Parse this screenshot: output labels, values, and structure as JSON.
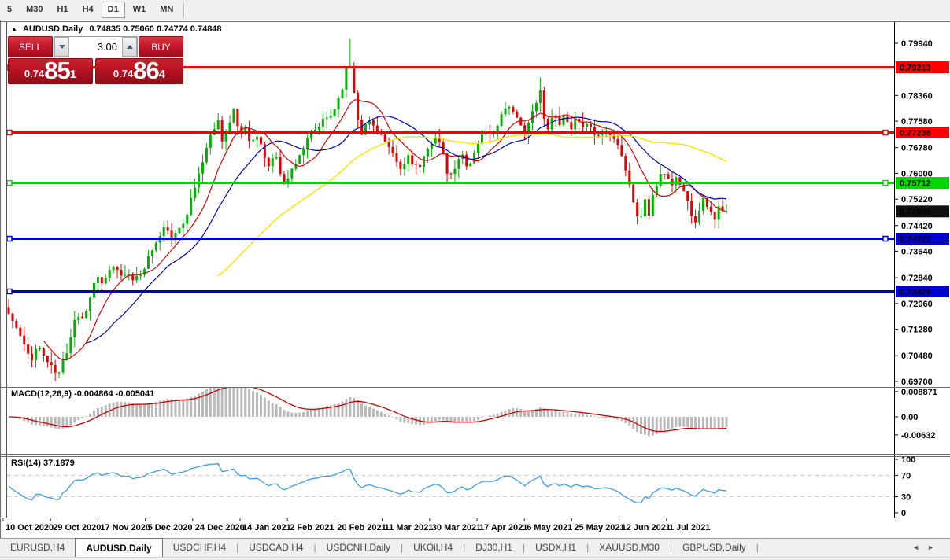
{
  "toolbar": {
    "timeframes": [
      {
        "label": "5",
        "active": false
      },
      {
        "label": "M30",
        "active": false
      },
      {
        "label": "H1",
        "active": false
      },
      {
        "label": "H4",
        "active": false
      },
      {
        "label": "D1",
        "active": true
      },
      {
        "label": "W1",
        "active": false
      },
      {
        "label": "MN",
        "active": false
      }
    ]
  },
  "chart_header": {
    "collapse_icon": "▲",
    "symbol": "AUDUSD,Daily",
    "ohlc": "0.74835 0.75060 0.74774 0.74848"
  },
  "trade_panel": {
    "sell_label": "SELL",
    "buy_label": "BUY",
    "volume": "3.00",
    "sell_price": {
      "prefix": "0.74",
      "big": "85",
      "sup": "1"
    },
    "buy_price": {
      "prefix": "0.74",
      "big": "86",
      "sup": "4"
    }
  },
  "price_axis": {
    "ticks": [
      "0.79940",
      "0.78360",
      "0.77580",
      "0.76780",
      "0.76000",
      "0.75220",
      "0.74420",
      "0.73640",
      "0.72840",
      "0.72060",
      "0.71280",
      "0.70480",
      "0.69700"
    ]
  },
  "macd_panel": {
    "label": "MACD(12,26,9)",
    "values": "-0.004864 -0.005041",
    "ticks": [
      {
        "label": "0.008871",
        "v": 0.008871
      },
      {
        "label": "0.00",
        "v": 0
      },
      {
        "label": "-0.00632",
        "v": -0.00632
      }
    ]
  },
  "rsi_panel": {
    "label": "RSI(14)",
    "value": "37.1879",
    "ticks": [
      {
        "label": "100",
        "v": 100
      },
      {
        "label": "70",
        "v": 70
      },
      {
        "label": "30",
        "v": 30
      },
      {
        "label": "0",
        "v": 0
      }
    ],
    "dashed_levels": [
      70,
      30
    ]
  },
  "date_axis": {
    "labels": [
      "10 Oct 2020",
      "29 Oct 2020",
      "17 Nov 2020",
      "5 Dec 2020",
      "24 Dec 2020",
      "14 Jan 2021",
      "2 Feb 2021",
      "20 Feb 2021",
      "11 Mar 2021",
      "30 Mar 2021",
      "17 Apr 2021",
      "6 May 2021",
      "25 May 2021",
      "12 Jun 2021",
      "1 Jul 2021"
    ]
  },
  "tabs": {
    "items": [
      {
        "label": "EURUSD,H4",
        "active": false
      },
      {
        "label": "AUDUSD,Daily",
        "active": true
      },
      {
        "label": "USDCHF,H4",
        "active": false
      },
      {
        "label": "USDCAD,H4",
        "active": false
      },
      {
        "label": "USDCNH,Daily",
        "active": false
      },
      {
        "label": "UKOil,H4",
        "active": false
      },
      {
        "label": "DJ30,H1",
        "active": false
      },
      {
        "label": "USDX,H1",
        "active": false
      },
      {
        "label": "XAUUSD,M30",
        "active": false
      },
      {
        "label": "GBPUSD,Daily",
        "active": false
      }
    ],
    "scroll_left": "◄",
    "scroll_right": "►"
  },
  "colors": {
    "up_candle": "#00b300",
    "down_candle": "#e60000",
    "ma_fast": "#dd0000",
    "ma_mid": "#0000bb",
    "ma_slow": "#ffe600",
    "macd_hist": "#b9b9b9",
    "macd_signal": "#cc0000",
    "rsi_line": "#3d9be9",
    "dashed_level": "#c9c9c9",
    "level_red": "#fe0000",
    "level_green": "#00d800",
    "level_blue": "#0000cc",
    "current_price_bg": "#111111"
  },
  "chart_data": {
    "type": "candlestick",
    "symbol": "AUDUSD",
    "timeframe": "Daily",
    "title": "AUDUSD,Daily",
    "current_ohlc": {
      "open": 0.74835,
      "high": 0.7506,
      "low": 0.74774,
      "close": 0.74848
    },
    "y_axis_range": [
      0.697,
      0.7994
    ],
    "x_axis_range": [
      "10 Oct 2020",
      "1 Jul 2021"
    ],
    "grid": false,
    "horizontal_levels": [
      {
        "price": 0.79213,
        "label": "0.79213",
        "color": "#fe0000",
        "right_handle": false
      },
      {
        "price": 0.77236,
        "label": "0.77236",
        "color": "#fe0000",
        "right_handle": true
      },
      {
        "price": 0.75712,
        "label": "0.75712",
        "color": "#00d800",
        "right_handle": true
      },
      {
        "price": 0.74022,
        "label": "0.74022",
        "color": "#0000cc",
        "right_handle": true
      },
      {
        "price": 0.72426,
        "label": "0.72426",
        "color": "#0000cc",
        "right_handle": false
      }
    ],
    "current_price": {
      "value": 0.74848,
      "label": "0.74848"
    },
    "moving_averages": [
      {
        "period": 10,
        "color": "#dd0000"
      },
      {
        "period": 21,
        "color": "#0000bb"
      },
      {
        "period": 55,
        "color": "#ffe600"
      }
    ],
    "indicators": [
      {
        "name": "MACD",
        "params": [
          12,
          26,
          9
        ],
        "current": [
          -0.004864,
          -0.005041
        ]
      },
      {
        "name": "RSI",
        "params": [
          14
        ],
        "current": 37.1879
      }
    ],
    "close_path": [
      [
        0.0,
        0.7175
      ],
      [
        0.008,
        0.7142
      ],
      [
        0.016,
        0.7108
      ],
      [
        0.024,
        0.706
      ],
      [
        0.032,
        0.7042
      ],
      [
        0.04,
        0.7078
      ],
      [
        0.048,
        0.7052
      ],
      [
        0.056,
        0.7022
      ],
      [
        0.064,
        0.7
      ],
      [
        0.07,
        0.6992
      ],
      [
        0.076,
        0.7035
      ],
      [
        0.082,
        0.7068
      ],
      [
        0.088,
        0.7125
      ],
      [
        0.094,
        0.718
      ],
      [
        0.1,
        0.7158
      ],
      [
        0.108,
        0.718
      ],
      [
        0.116,
        0.7255
      ],
      [
        0.124,
        0.7285
      ],
      [
        0.132,
        0.7262
      ],
      [
        0.14,
        0.73
      ],
      [
        0.15,
        0.7318
      ],
      [
        0.158,
        0.7282
      ],
      [
        0.166,
        0.7312
      ],
      [
        0.174,
        0.7265
      ],
      [
        0.182,
        0.729
      ],
      [
        0.19,
        0.7322
      ],
      [
        0.2,
        0.737
      ],
      [
        0.21,
        0.7405
      ],
      [
        0.22,
        0.7445
      ],
      [
        0.228,
        0.7392
      ],
      [
        0.236,
        0.743
      ],
      [
        0.246,
        0.7468
      ],
      [
        0.256,
        0.753
      ],
      [
        0.266,
        0.7608
      ],
      [
        0.276,
        0.768
      ],
      [
        0.286,
        0.7742
      ],
      [
        0.292,
        0.7758
      ],
      [
        0.298,
        0.77
      ],
      [
        0.306,
        0.7738
      ],
      [
        0.314,
        0.7788
      ],
      [
        0.322,
        0.7718
      ],
      [
        0.33,
        0.7742
      ],
      [
        0.338,
        0.769
      ],
      [
        0.346,
        0.7712
      ],
      [
        0.354,
        0.7668
      ],
      [
        0.362,
        0.762
      ],
      [
        0.37,
        0.7662
      ],
      [
        0.378,
        0.7608
      ],
      [
        0.386,
        0.7565
      ],
      [
        0.394,
        0.7608
      ],
      [
        0.402,
        0.7648
      ],
      [
        0.41,
        0.7672
      ],
      [
        0.42,
        0.771
      ],
      [
        0.43,
        0.7738
      ],
      [
        0.44,
        0.7762
      ],
      [
        0.45,
        0.7778
      ],
      [
        0.458,
        0.7818
      ],
      [
        0.466,
        0.7872
      ],
      [
        0.474,
        0.7948
      ],
      [
        0.478,
        0.7905
      ],
      [
        0.482,
        0.7828
      ],
      [
        0.488,
        0.7752
      ],
      [
        0.494,
        0.7712
      ],
      [
        0.5,
        0.7768
      ],
      [
        0.508,
        0.7745
      ],
      [
        0.516,
        0.7728
      ],
      [
        0.524,
        0.7695
      ],
      [
        0.532,
        0.7662
      ],
      [
        0.54,
        0.7635
      ],
      [
        0.548,
        0.7602
      ],
      [
        0.556,
        0.7658
      ],
      [
        0.564,
        0.763
      ],
      [
        0.572,
        0.7612
      ],
      [
        0.58,
        0.7648
      ],
      [
        0.588,
        0.7695
      ],
      [
        0.596,
        0.7718
      ],
      [
        0.604,
        0.7665
      ],
      [
        0.61,
        0.7605
      ],
      [
        0.616,
        0.7588
      ],
      [
        0.624,
        0.7628
      ],
      [
        0.632,
        0.7655
      ],
      [
        0.64,
        0.7622
      ],
      [
        0.648,
        0.7655
      ],
      [
        0.656,
        0.7702
      ],
      [
        0.664,
        0.7732
      ],
      [
        0.672,
        0.7712
      ],
      [
        0.68,
        0.7748
      ],
      [
        0.688,
        0.7785
      ],
      [
        0.696,
        0.7815
      ],
      [
        0.702,
        0.7782
      ],
      [
        0.71,
        0.7752
      ],
      [
        0.718,
        0.7725
      ],
      [
        0.726,
        0.7762
      ],
      [
        0.734,
        0.7802
      ],
      [
        0.74,
        0.7855
      ],
      [
        0.746,
        0.7762
      ],
      [
        0.752,
        0.7742
      ],
      [
        0.76,
        0.7785
      ],
      [
        0.768,
        0.7752
      ],
      [
        0.776,
        0.7775
      ],
      [
        0.784,
        0.7742
      ],
      [
        0.792,
        0.7762
      ],
      [
        0.8,
        0.7735
      ],
      [
        0.808,
        0.7745
      ],
      [
        0.816,
        0.7705
      ],
      [
        0.824,
        0.7735
      ],
      [
        0.832,
        0.7722
      ],
      [
        0.84,
        0.7718
      ],
      [
        0.848,
        0.7688
      ],
      [
        0.856,
        0.7655
      ],
      [
        0.862,
        0.7592
      ],
      [
        0.868,
        0.754
      ],
      [
        0.874,
        0.748
      ],
      [
        0.88,
        0.7452
      ],
      [
        0.886,
        0.7528
      ],
      [
        0.892,
        0.7475
      ],
      [
        0.898,
        0.754
      ],
      [
        0.904,
        0.7572
      ],
      [
        0.91,
        0.7595
      ],
      [
        0.916,
        0.7608
      ],
      [
        0.922,
        0.7558
      ],
      [
        0.928,
        0.7588
      ],
      [
        0.934,
        0.7575
      ],
      [
        0.94,
        0.7548
      ],
      [
        0.946,
        0.7512
      ],
      [
        0.952,
        0.7478
      ],
      [
        0.958,
        0.7455
      ],
      [
        0.964,
        0.7512
      ],
      [
        0.97,
        0.7522
      ],
      [
        0.976,
        0.7492
      ],
      [
        0.982,
        0.7452
      ],
      [
        0.988,
        0.7502
      ],
      [
        0.994,
        0.7478
      ],
      [
        1.0,
        0.74848
      ]
    ]
  }
}
